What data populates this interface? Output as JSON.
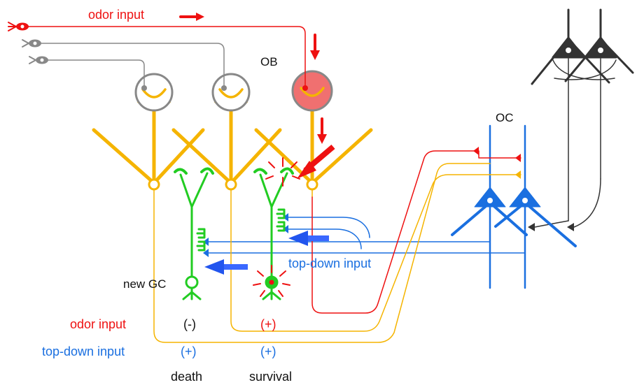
{
  "labels": {
    "odor_input_top": "odor input",
    "ob": "OB",
    "oc": "OC",
    "top_down_input_mid": "top-down input",
    "new_gc": "new GC",
    "odor_input_row": "odor input",
    "top_down_input_row": "top-down input",
    "odor_death_sign": "(-)",
    "odor_survival_sign": "(+)",
    "topdown_death_sign": "(+)",
    "topdown_survival_sign": "(+)",
    "death": "death",
    "survival": "survival"
  },
  "colors": {
    "odor": "#ee1111",
    "mitral": "#f5b400",
    "granule": "#22cc22",
    "cortex": "#1a6fe0",
    "topdown_arrow": "#2255ee",
    "receptor_inactive": "#888888",
    "active_glomerulus": "#f07070",
    "pyramidal_dark": "#333333",
    "label_black": "#111111"
  }
}
